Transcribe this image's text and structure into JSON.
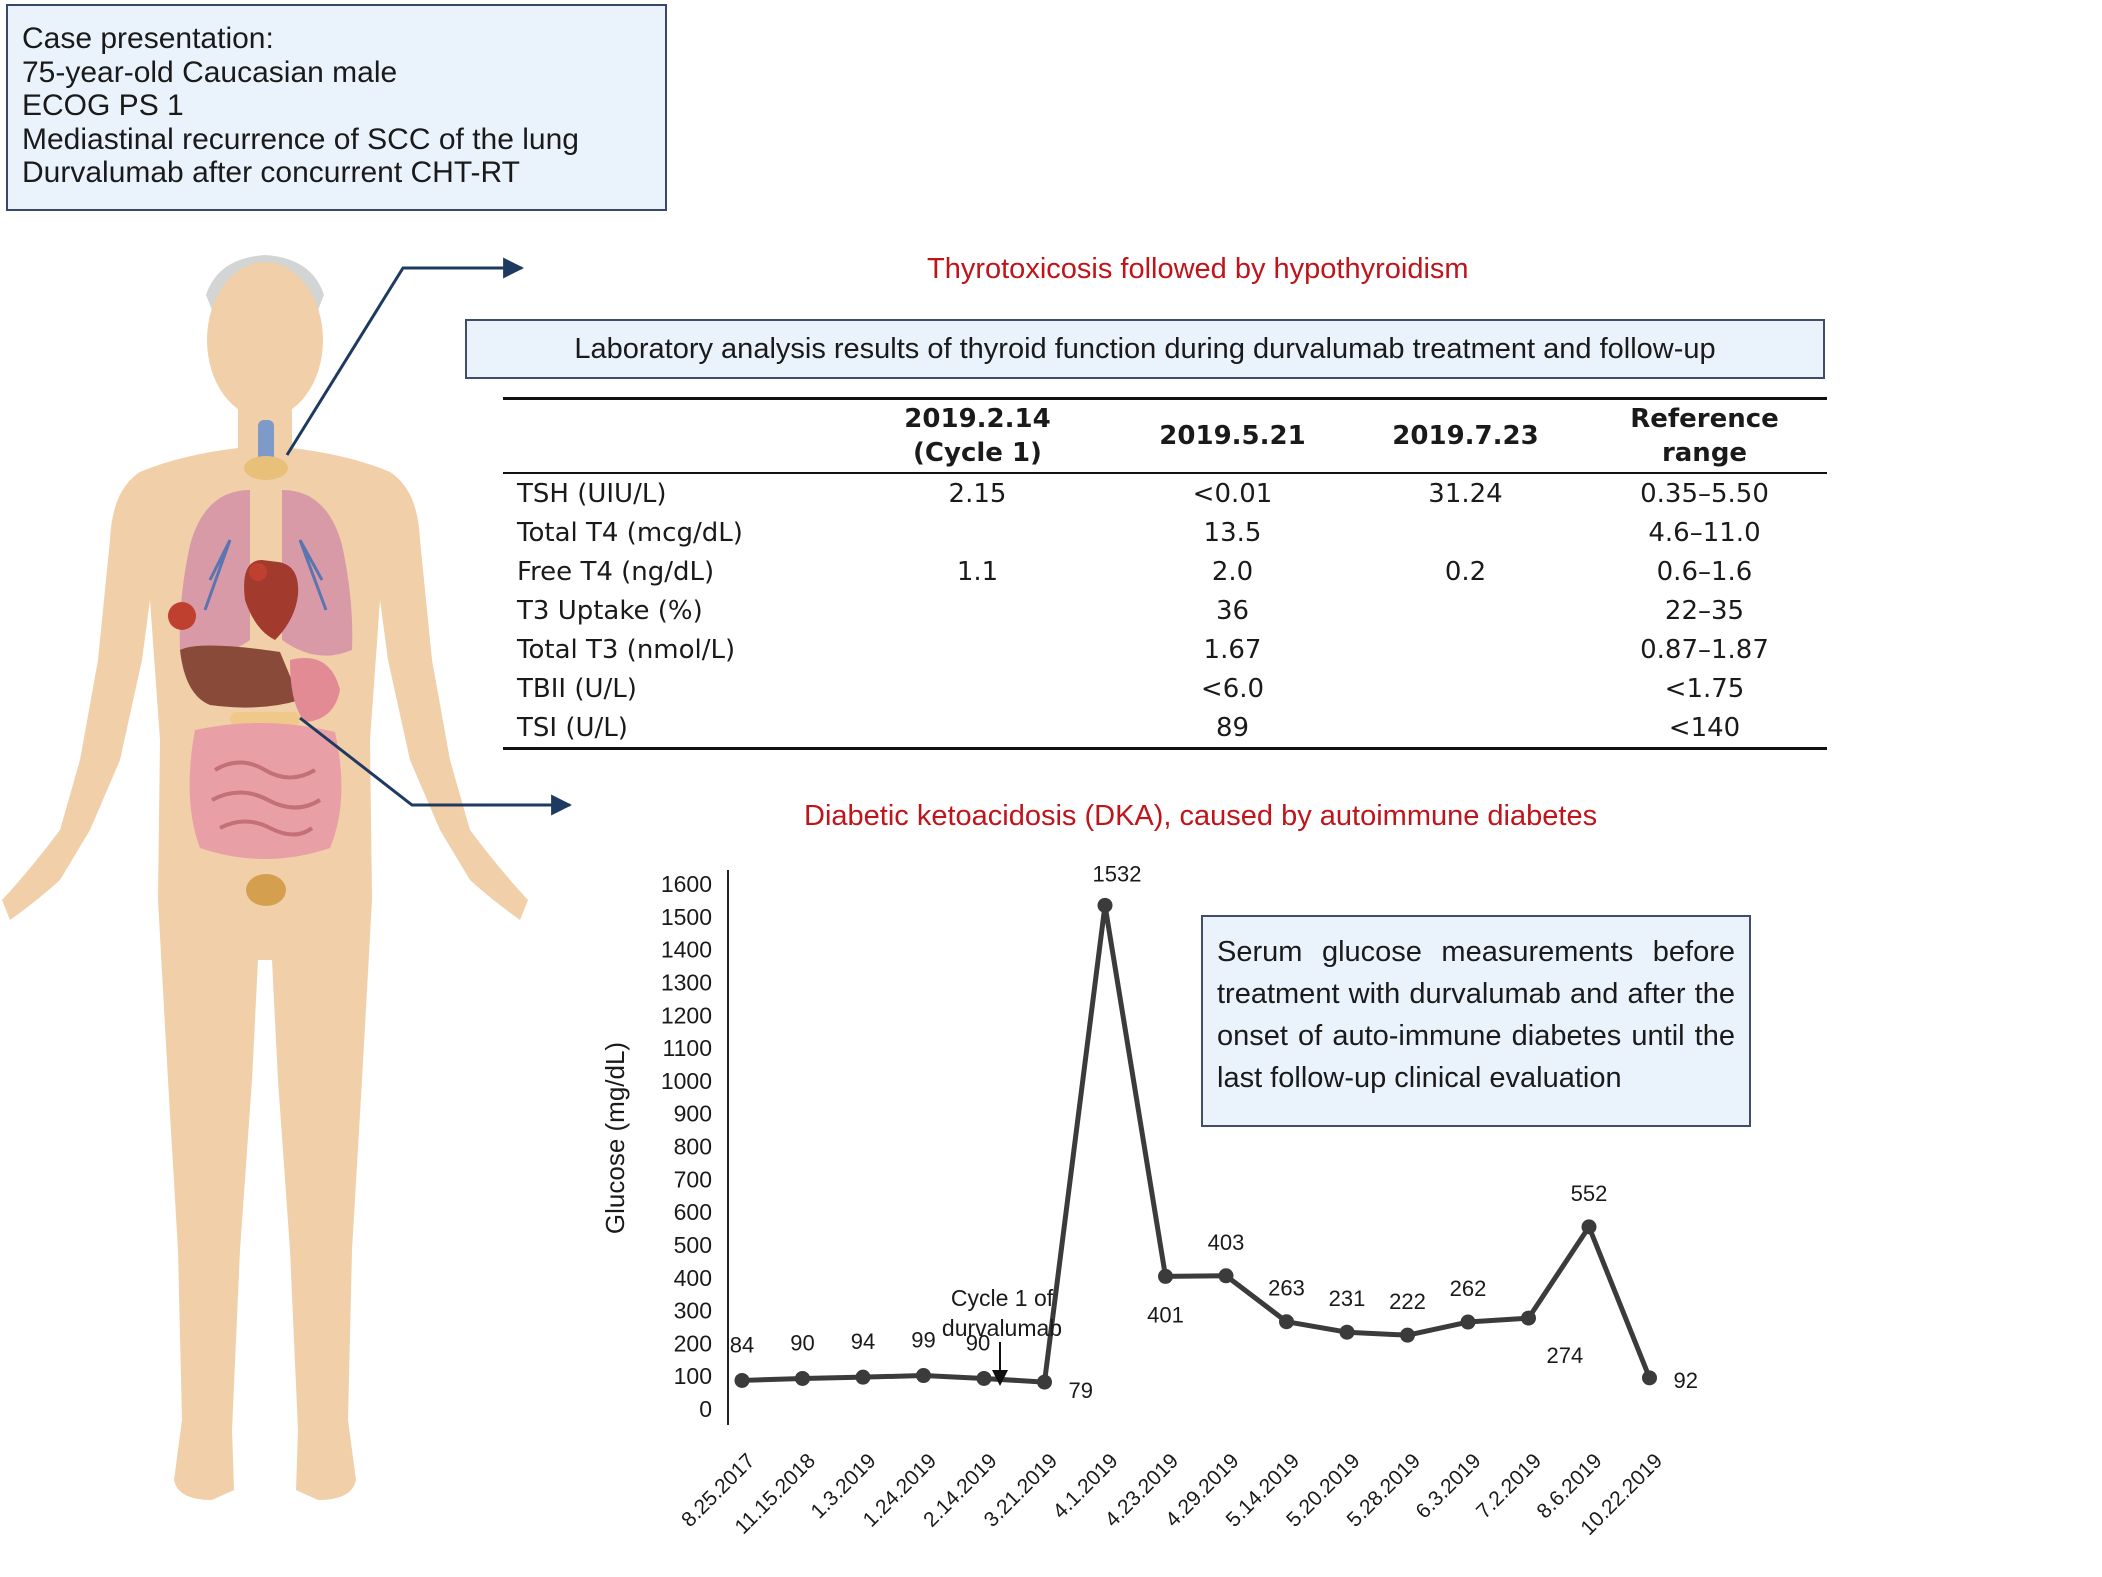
{
  "case_presentation": {
    "lines": [
      "Case presentation:",
      "75-year-old Caucasian male",
      "ECOG PS 1",
      "Mediastinal recurrence of SCC of the lung",
      "Durvalumab after concurrent CHT-RT"
    ]
  },
  "thyroid_section": {
    "title": "Thyrotoxicosis followed by hypothyroidism",
    "box_label": "Laboratory analysis results of thyroid function during durvalumab treatment and follow-up",
    "columns": [
      "",
      "2019.2.14\n(Cycle 1)",
      "2019.5.21",
      "2019.7.23",
      "Reference\nrange"
    ],
    "rows": [
      [
        "TSH (UIU/L)",
        "2.15",
        "<0.01",
        "31.24",
        "0.35–5.50"
      ],
      [
        "Total T4 (mcg/dL)",
        "",
        "13.5",
        "",
        "4.6–11.0"
      ],
      [
        "Free T4 (ng/dL)",
        "1.1",
        "2.0",
        "0.2",
        "0.6–1.6"
      ],
      [
        "T3 Uptake (%)",
        "",
        "36",
        "",
        "22–35"
      ],
      [
        "Total T3 (nmol/L)",
        "",
        "1.67",
        "",
        "0.87–1.87"
      ],
      [
        "TBII (U/L)",
        "",
        "<6.0",
        "",
        "<1.75"
      ],
      [
        "TSI (U/L)",
        "",
        "89",
        "",
        "<140"
      ]
    ]
  },
  "diabetes_section": {
    "title": "Diabetic ketoacidosis (DKA), caused by autoimmune diabetes",
    "note": "Serum glucose measurements before treatment with durvalumab and after the onset of auto-immune diabetes until the last follow-up clinical evaluation",
    "annotation_line1": "Cycle 1 of",
    "annotation_line2": "durvalumab"
  },
  "colors": {
    "title_red": "#c0141b",
    "box_fill": "#eaf3fc",
    "arrow_navy": "#1f3a60",
    "line_gray": "#3b3b3b",
    "skin": "#f0cfa9"
  },
  "icons": [
    "human-anatomy-illustration"
  ],
  "chart_data": {
    "type": "line",
    "categories": [
      "8.25.2017",
      "11.15.2018",
      "1.3.2019",
      "1.24.2019",
      "2.14.2019",
      "3.21.2019",
      "4.1.2019",
      "4.23.2019",
      "4.29.2019",
      "5.14.2019",
      "5.20.2019",
      "5.28.2019",
      "6.3.2019",
      "7.2.2019",
      "8.6.2019",
      "10.22.2019"
    ],
    "values": [
      84,
      90,
      94,
      99,
      90,
      79,
      1532,
      401,
      403,
      263,
      231,
      222,
      262,
      274,
      552,
      92
    ],
    "data_labels": [
      "84",
      "90",
      "94",
      "99",
      "90",
      "79",
      "1532",
      "401",
      "403",
      "263",
      "231",
      "222",
      "262",
      "274",
      "552",
      "92"
    ],
    "xlabel": "",
    "ylabel": "Glucose (mg/dL)",
    "ylim": [
      0,
      1600
    ],
    "yticks": [
      0,
      100,
      200,
      300,
      400,
      500,
      600,
      700,
      800,
      900,
      1000,
      1100,
      1200,
      1300,
      1400,
      1500,
      1600
    ],
    "grid": false,
    "legend": "none"
  }
}
